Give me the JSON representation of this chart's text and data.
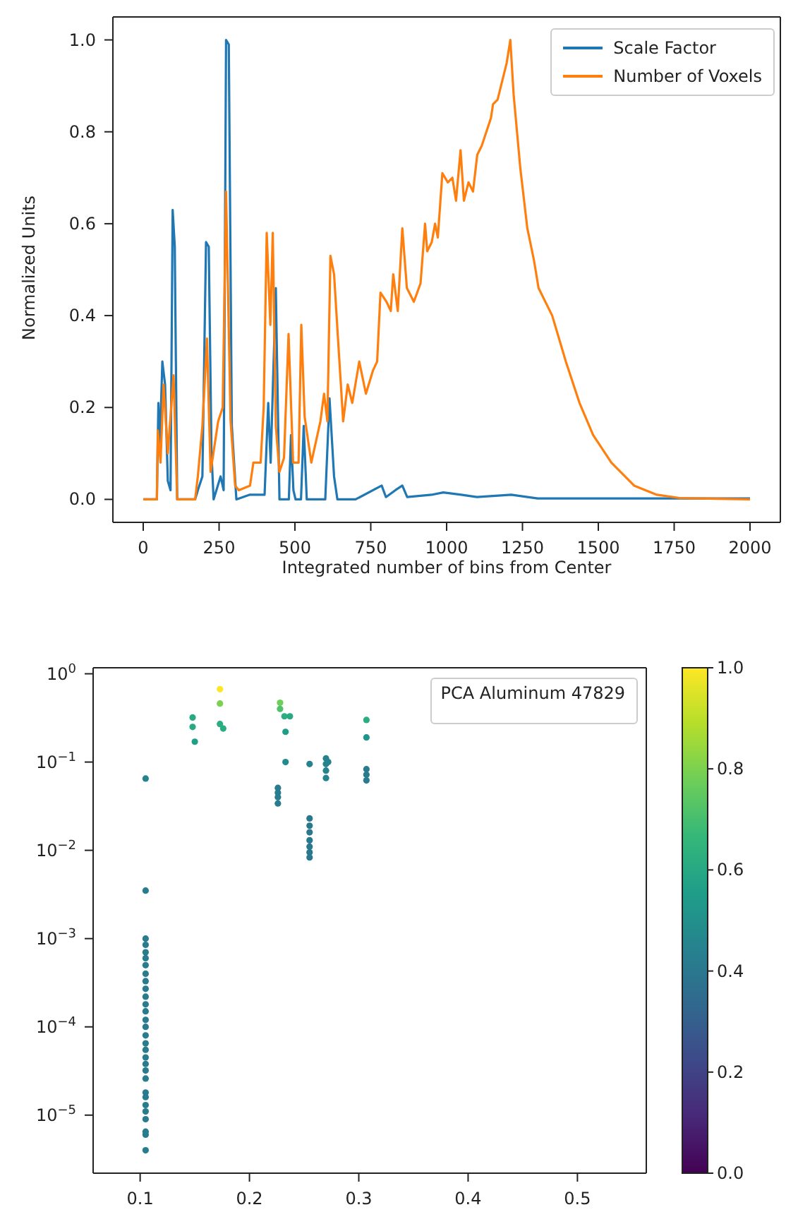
{
  "chart_data": [
    {
      "type": "line",
      "xlabel": "Integrated number of bins from Center",
      "ylabel": "Normalized Units",
      "xlim": [
        -100,
        2100
      ],
      "ylim": [
        -0.05,
        1.05
      ],
      "xticks": [
        0,
        250,
        500,
        750,
        1000,
        1250,
        1500,
        1750,
        2000
      ],
      "yticks": [
        {
          "value": 0,
          "label": "0.0"
        },
        0.2,
        0.4,
        0.6,
        0.8,
        {
          "value": 1,
          "label": "1.0"
        }
      ],
      "grid": false,
      "legend": "top right",
      "marker": "none",
      "line_style": "solid",
      "series": [
        {
          "name": "Scale Factor",
          "color": "#1f77b4",
          "x": [
            0,
            45,
            50,
            55,
            63,
            72,
            81,
            90,
            97,
            104,
            112,
            171,
            180,
            195,
            207,
            216,
            225,
            232,
            255,
            265,
            273,
            282,
            292,
            307,
            350,
            400,
            412,
            420,
            437,
            449,
            480,
            487,
            495,
            502,
            520,
            529,
            539,
            600,
            614,
            629,
            640,
            700,
            786,
            800,
            831,
            854,
            870,
            950,
            989,
            1048,
            1100,
            1213,
            1300,
            2000
          ],
          "values": [
            0,
            0,
            0.21,
            0.12,
            0.3,
            0.25,
            0.04,
            0.02,
            0.63,
            0.55,
            0,
            0,
            0.02,
            0.05,
            0.56,
            0.55,
            0.1,
            0,
            0.05,
            0.02,
            1.0,
            0.99,
            0.16,
            0,
            0.01,
            0.01,
            0.21,
            0.08,
            0.46,
            0,
            0,
            0.14,
            0.02,
            0,
            0,
            0.16,
            0,
            0,
            0.22,
            0.05,
            0,
            0,
            0.03,
            0.005,
            0.02,
            0.03,
            0.005,
            0.01,
            0.015,
            0.01,
            0.005,
            0.01,
            0.002,
            0.002
          ]
        },
        {
          "name": "Number of Voxels",
          "color": "#ff7f0e",
          "x": [
            0,
            45,
            48,
            57,
            67,
            81,
            100,
            112,
            171,
            180,
            195,
            210,
            222,
            247,
            262,
            273,
            288,
            303,
            315,
            352,
            363,
            387,
            397,
            407,
            419,
            427,
            437,
            449,
            464,
            479,
            494,
            512,
            521,
            532,
            554,
            584,
            596,
            607,
            617,
            629,
            641,
            659,
            674,
            689,
            712,
            734,
            757,
            771,
            782,
            802,
            816,
            824,
            839,
            854,
            869,
            892,
            914,
            929,
            936,
            951,
            962,
            971,
            986,
            1004,
            1019,
            1031,
            1046,
            1057,
            1072,
            1087,
            1101,
            1116,
            1131,
            1146,
            1153,
            1168,
            1183,
            1198,
            1210,
            1221,
            1243,
            1266,
            1288,
            1303,
            1348,
            1393,
            1438,
            1483,
            1543,
            1618,
            1693,
            1768,
            2000
          ],
          "values": [
            0,
            0,
            0.15,
            0.08,
            0.25,
            0.1,
            0.27,
            0,
            0,
            0.05,
            0.16,
            0.35,
            0.06,
            0.17,
            0.2,
            0.67,
            0.17,
            0.03,
            0.02,
            0.03,
            0.08,
            0.08,
            0.2,
            0.58,
            0.38,
            0.58,
            0.16,
            0.06,
            0.09,
            0.36,
            0.08,
            0.08,
            0.38,
            0.18,
            0.08,
            0.17,
            0.23,
            0.17,
            0.53,
            0.49,
            0.36,
            0.17,
            0.25,
            0.21,
            0.3,
            0.23,
            0.28,
            0.3,
            0.45,
            0.43,
            0.41,
            0.49,
            0.41,
            0.59,
            0.46,
            0.43,
            0.47,
            0.6,
            0.54,
            0.56,
            0.6,
            0.57,
            0.71,
            0.69,
            0.7,
            0.65,
            0.76,
            0.65,
            0.69,
            0.67,
            0.75,
            0.77,
            0.8,
            0.83,
            0.86,
            0.87,
            0.91,
            0.95,
            1.0,
            0.88,
            0.72,
            0.59,
            0.52,
            0.46,
            0.4,
            0.3,
            0.21,
            0.14,
            0.08,
            0.03,
            0.01,
            0.003,
            0
          ]
        }
      ]
    },
    {
      "type": "scatter",
      "legend_title": "PCA Aluminum 47829",
      "log": "y",
      "marker": "circle",
      "xlim": [
        0.057,
        0.563
      ],
      "ylim": [
        2.2e-06,
        1.17
      ],
      "xticks": [
        0.1,
        0.2,
        0.3,
        0.4,
        0.5
      ],
      "yticks": [
        {
          "value": 1e-05,
          "label": "10$^{−5}$"
        },
        {
          "value": 0.0001,
          "label": "10$^{−4}$"
        },
        {
          "value": 0.001,
          "label": "10$^{−3}$"
        },
        {
          "value": 0.01,
          "label": "10$^{−2}$"
        },
        {
          "value": 0.1,
          "label": "10$^{−1}$"
        },
        {
          "value": 1,
          "label": "10$^{0}$"
        }
      ],
      "clim": [
        0,
        1
      ],
      "cticks": [
        {
          "value": 0,
          "label": "0.0"
        },
        0.2,
        0.4,
        0.6,
        0.8,
        {
          "value": 1,
          "label": "1.0"
        }
      ],
      "grid": false,
      "x": [
        0.105,
        0.105,
        0.105,
        0.105,
        0.105,
        0.105,
        0.105,
        0.105,
        0.105,
        0.105,
        0.105,
        0.105,
        0.105,
        0.105,
        0.105,
        0.105,
        0.105,
        0.105,
        0.105,
        0.105,
        0.105,
        0.105,
        0.105,
        0.105,
        0.105,
        0.105,
        0.105,
        0.105,
        0.105,
        0.105,
        0.148,
        0.148,
        0.15,
        0.173,
        0.173,
        0.173,
        0.176,
        0.228,
        0.228,
        0.232,
        0.237,
        0.233,
        0.233,
        0.226,
        0.226,
        0.226,
        0.226,
        0.255,
        0.255,
        0.255,
        0.255,
        0.255,
        0.255,
        0.255,
        0.255,
        0.27,
        0.27,
        0.27,
        0.27,
        0.272,
        0.307,
        0.307,
        0.307,
        0.307,
        0.307
      ],
      "values": [
        4e-06,
        6e-06,
        6.5e-06,
        9e-06,
        1.1e-05,
        1.3e-05,
        1.6e-05,
        1.8e-05,
        2.6e-05,
        3.2e-05,
        3.8e-05,
        4.5e-05,
        5.5e-05,
        6.5e-05,
        8e-05,
        0.0001,
        0.00012,
        0.00015,
        0.00018,
        0.00022,
        0.00027,
        0.00033,
        0.0004,
        0.0005,
        0.0006,
        0.0007,
        0.00085,
        0.001,
        0.0035,
        0.065,
        0.32,
        0.25,
        0.17,
        0.67,
        0.46,
        0.27,
        0.24,
        0.47,
        0.4,
        0.33,
        0.33,
        0.22,
        0.1,
        0.051,
        0.045,
        0.04,
        0.034,
        0.095,
        0.023,
        0.019,
        0.016,
        0.013,
        0.011,
        0.0095,
        0.0083,
        0.11,
        0.095,
        0.08,
        0.066,
        0.1,
        0.3,
        0.19,
        0.083,
        0.072,
        0.062
      ],
      "cvalues": [
        0.42,
        0.42,
        0.42,
        0.42,
        0.42,
        0.42,
        0.42,
        0.42,
        0.42,
        0.42,
        0.42,
        0.42,
        0.42,
        0.42,
        0.42,
        0.42,
        0.42,
        0.42,
        0.42,
        0.42,
        0.42,
        0.42,
        0.42,
        0.42,
        0.42,
        0.42,
        0.42,
        0.42,
        0.42,
        0.45,
        0.6,
        0.6,
        0.56,
        1.0,
        0.8,
        0.62,
        0.62,
        0.78,
        0.72,
        0.62,
        0.6,
        0.55,
        0.48,
        0.42,
        0.42,
        0.42,
        0.42,
        0.45,
        0.4,
        0.4,
        0.4,
        0.4,
        0.4,
        0.4,
        0.4,
        0.45,
        0.45,
        0.45,
        0.45,
        0.45,
        0.62,
        0.52,
        0.42,
        0.42,
        0.42
      ]
    }
  ]
}
